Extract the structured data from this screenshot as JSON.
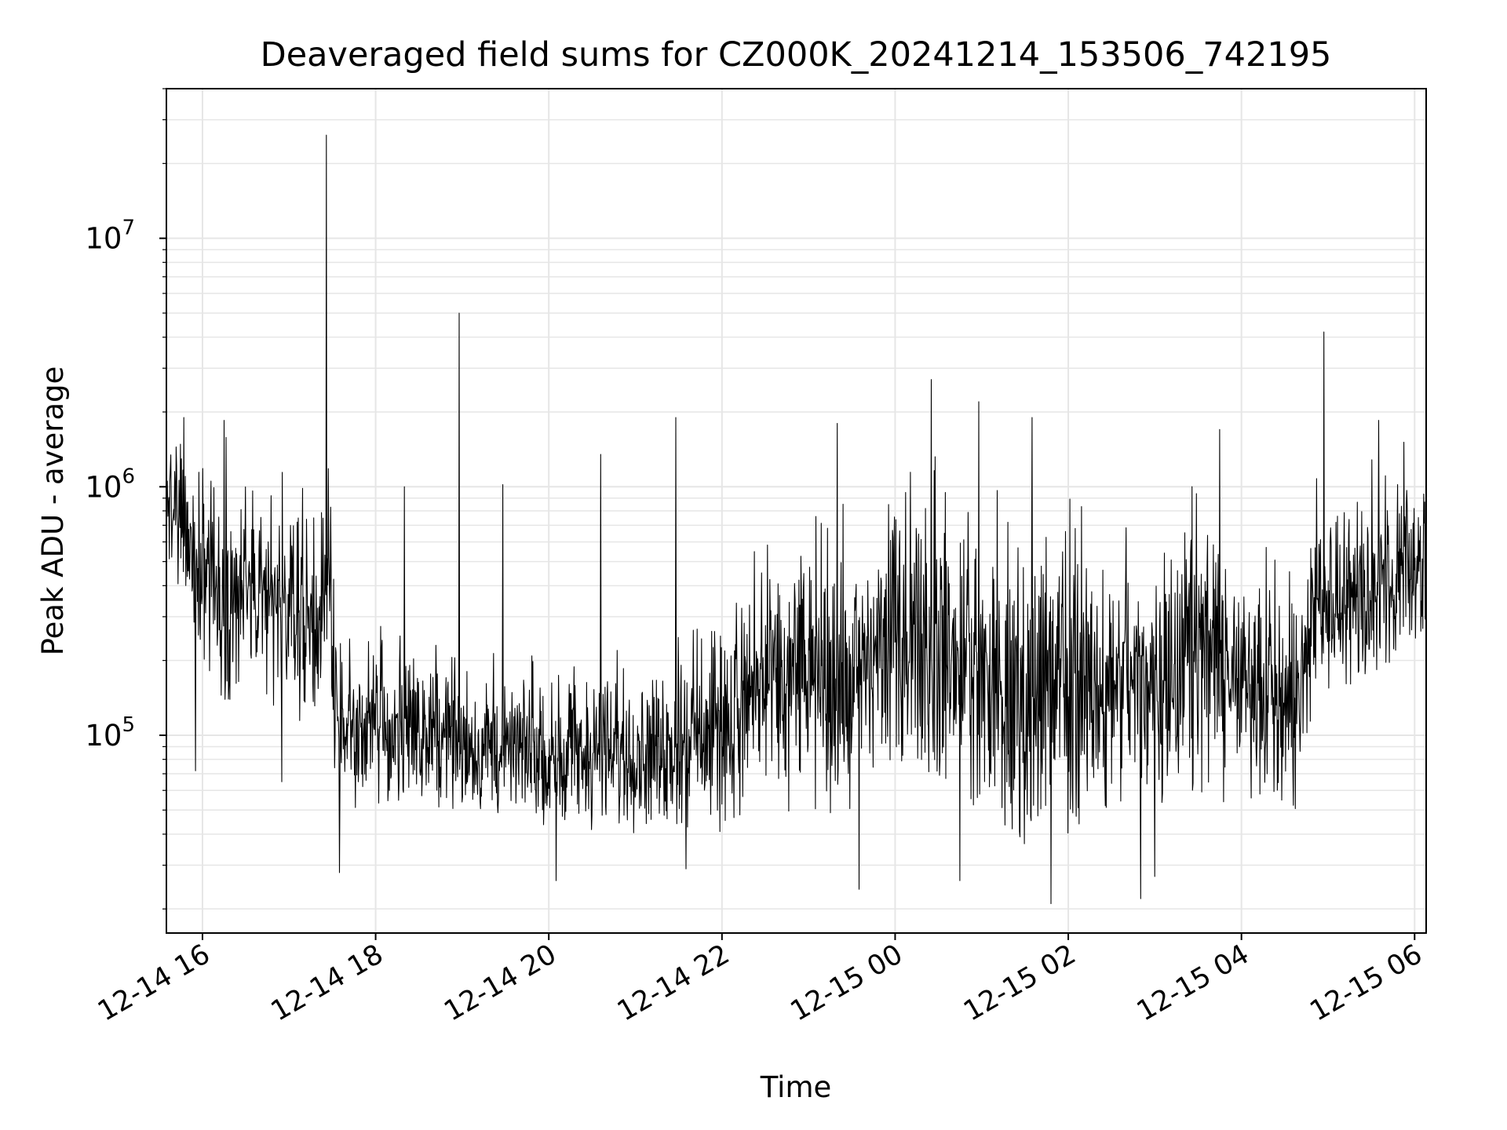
{
  "chart_data": {
    "type": "line",
    "title": "Deaveraged field sums for CZ000K_20241214_153506_742195",
    "xlabel": "Time",
    "ylabel": "Peak ADU - average",
    "yscale": "log",
    "ylim": [
      16000,
      40000000
    ],
    "xlim": [
      "2024-12-14T15:35:00",
      "2024-12-15T06:08:00"
    ],
    "grid": true,
    "colors": {
      "line": "#000000",
      "grid": "#e6e6e6",
      "axes": "#000000"
    },
    "x_ticks": [
      {
        "value": "2024-12-14T16:00:00",
        "label": "12-14 16"
      },
      {
        "value": "2024-12-14T18:00:00",
        "label": "12-14 18"
      },
      {
        "value": "2024-12-14T20:00:00",
        "label": "12-14 20"
      },
      {
        "value": "2024-12-14T22:00:00",
        "label": "12-14 22"
      },
      {
        "value": "2024-12-15T00:00:00",
        "label": "12-15 00"
      },
      {
        "value": "2024-12-15T02:00:00",
        "label": "12-15 02"
      },
      {
        "value": "2024-12-15T04:00:00",
        "label": "12-15 04"
      },
      {
        "value": "2024-12-15T06:00:00",
        "label": "12-15 06"
      }
    ],
    "y_ticks": [
      {
        "value": 100000,
        "base": "10",
        "exp": "5"
      },
      {
        "value": 1000000,
        "base": "10",
        "exp": "6"
      },
      {
        "value": 10000000,
        "base": "10",
        "exp": "7"
      }
    ],
    "series": [
      {
        "envelope": [
          {
            "t": "2024-12-14T15:35:00",
            "low": 500000,
            "high": 1700000
          },
          {
            "t": "2024-12-14T15:50:00",
            "low": 250000,
            "high": 1500000
          },
          {
            "t": "2024-12-14T16:10:00",
            "low": 140000,
            "high": 1200000
          },
          {
            "t": "2024-12-14T16:40:00",
            "low": 120000,
            "high": 1000000
          },
          {
            "t": "2024-12-14T17:10:00",
            "low": 110000,
            "high": 800000
          },
          {
            "t": "2024-12-14T17:28:00",
            "low": 110000,
            "high": 900000
          },
          {
            "t": "2024-12-14T17:35:00",
            "low": 50000,
            "high": 250000
          },
          {
            "t": "2024-12-14T18:30:00",
            "low": 50000,
            "high": 200000
          },
          {
            "t": "2024-12-14T19:30:00",
            "low": 45000,
            "high": 180000
          },
          {
            "t": "2024-12-14T20:30:00",
            "low": 40000,
            "high": 170000
          },
          {
            "t": "2024-12-14T21:30:00",
            "low": 40000,
            "high": 230000
          },
          {
            "t": "2024-12-14T22:00:00",
            "low": 40000,
            "high": 280000
          },
          {
            "t": "2024-12-14T22:30:00",
            "low": 50000,
            "high": 500000
          },
          {
            "t": "2024-12-14T23:30:00",
            "low": 45000,
            "high": 600000
          },
          {
            "t": "2024-12-15T00:00:00",
            "low": 80000,
            "high": 800000
          },
          {
            "t": "2024-12-15T00:30:00",
            "low": 60000,
            "high": 900000
          },
          {
            "t": "2024-12-15T01:30:00",
            "low": 35000,
            "high": 600000
          },
          {
            "t": "2024-12-15T02:30:00",
            "low": 40000,
            "high": 600000
          },
          {
            "t": "2024-12-15T03:30:00",
            "low": 60000,
            "high": 800000
          },
          {
            "t": "2024-12-15T04:00:00",
            "low": 50000,
            "high": 500000
          },
          {
            "t": "2024-12-15T04:40:00",
            "low": 50000,
            "high": 350000
          },
          {
            "t": "2024-12-15T04:50:00",
            "low": 130000,
            "high": 900000
          },
          {
            "t": "2024-12-15T05:30:00",
            "low": 150000,
            "high": 1000000
          },
          {
            "t": "2024-12-15T06:08:00",
            "low": 250000,
            "high": 1400000
          }
        ],
        "spikes": [
          {
            "t": "2024-12-14T17:26:00",
            "value": 26000000
          },
          {
            "t": "2024-12-14T18:58:00",
            "value": 5000000
          },
          {
            "t": "2024-12-15T04:57:00",
            "value": 4200000
          },
          {
            "t": "2024-12-15T00:25:00",
            "value": 2700000
          },
          {
            "t": "2024-12-15T00:58:00",
            "value": 2200000
          },
          {
            "t": "2024-12-14T19:28:00",
            "value": 1020000
          },
          {
            "t": "2024-12-14T21:28:00",
            "value": 1900000
          },
          {
            "t": "2024-12-14T23:20:00",
            "value": 1800000
          },
          {
            "t": "2024-12-14T20:36:00",
            "value": 1350000
          },
          {
            "t": "2024-12-14T16:15:00",
            "value": 1850000
          },
          {
            "t": "2024-12-14T15:47:00",
            "value": 1900000
          },
          {
            "t": "2024-12-15T05:35:00",
            "value": 1850000
          },
          {
            "t": "2024-12-15T01:35:00",
            "value": 1900000
          },
          {
            "t": "2024-12-14T18:20:00",
            "value": 1000000
          },
          {
            "t": "2024-12-15T03:45:00",
            "value": 1700000
          },
          {
            "t": "2024-12-14T17:35:00",
            "value": 28000
          },
          {
            "t": "2024-12-14T23:35:00",
            "value": 24000
          },
          {
            "t": "2024-12-15T01:48:00",
            "value": 21000
          },
          {
            "t": "2024-12-15T02:50:00",
            "value": 22000
          },
          {
            "t": "2024-12-14T20:05:00",
            "value": 26000
          },
          {
            "t": "2024-12-14T21:35:00",
            "value": 29000
          },
          {
            "t": "2024-12-15T00:45:00",
            "value": 26000
          },
          {
            "t": "2024-12-15T03:00:00",
            "value": 27000
          },
          {
            "t": "2024-12-14T16:55:00",
            "value": 65000
          },
          {
            "t": "2024-12-14T15:55:00",
            "value": 72000
          }
        ]
      }
    ]
  }
}
